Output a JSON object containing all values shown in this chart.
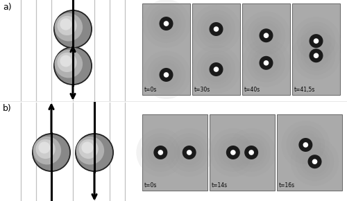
{
  "fig_width": 5.0,
  "fig_height": 2.9,
  "dpi": 100,
  "bg_color": "#ffffff",
  "panel_a_label": "a)",
  "panel_b_label": "b)",
  "photo_bg": "#aaaaaa",
  "times_a": [
    "t=0s",
    "t=30s",
    "t=40s",
    "t=41,5s"
  ],
  "times_b": [
    "t=0s",
    "t=14s",
    "t=16s"
  ],
  "vline_color": "#c0c0c0",
  "arrow_lw": 2.2,
  "sphere_lw": 1.8
}
